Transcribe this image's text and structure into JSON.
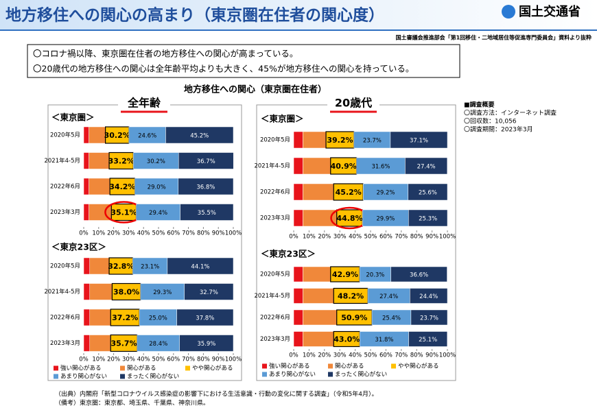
{
  "header": {
    "title": "地方移住への関心の高まり（東京圏在住者の関心度）",
    "logo": "国土交通省",
    "source": "国土審議会推進部会「第1回移住・二地域居住等促進専門委員会」資料より抜粋"
  },
  "bullets": [
    "〇コロナ禍以降、東京圏在住者の地方移住への関心が高まっている。",
    "〇20歳代の地方移住への関心は全年齢平均よりも大きく、45%が地方移住への関心を持っている。"
  ],
  "figure_title": "地方移住への関心（東京圏在住者）",
  "survey": [
    "■調査概要",
    "〇調査方法：インターネット調査",
    "〇回収数：10,056",
    "〇調査期間：2023年3月"
  ],
  "footnotes": [
    "（出典）内閣府「新型コロナウイルス感染症の影響下における生活意識・行動の変化に関する調査」（令和5年4月）。",
    "（備考）東京圏：東京都、埼玉県、千葉県、神奈川県。"
  ],
  "chart_data": [
    {
      "type": "bar",
      "orientation": "horizontal",
      "stacked": true,
      "subtitle": "全年齢",
      "title": "＜東京圏＞",
      "categories": [
        "2020年5月",
        "2021年4-5月",
        "2022年6月",
        "2023年3月"
      ],
      "series": [
        {
          "color": "#e8141b",
          "values": [
            3.5,
            3.5,
            3.5,
            3.5
          ]
        },
        {
          "color": "#f0883a",
          "values": [
            11,
            13.5,
            14,
            15
          ]
        },
        {
          "color": "#ffc000",
          "values": [
            15.7,
            16.2,
            16.7,
            16.6
          ]
        },
        {
          "color": "#5b9bd5",
          "values": [
            24.6,
            30.2,
            29.0,
            29.4
          ],
          "value_labels": [
            "24.6%",
            "30.2%",
            "29.0%",
            "29.4%"
          ]
        },
        {
          "color": "#1f3864",
          "values": [
            45.2,
            36.7,
            36.8,
            35.5
          ],
          "value_labels": [
            "45.2%",
            "36.7%",
            "36.8%",
            "35.5%"
          ]
        }
      ],
      "combined": {
        "values": [
          30.2,
          33.2,
          34.2,
          35.1
        ],
        "value_labels": [
          "30.2%",
          "33.2%",
          "34.2%",
          "35.1%"
        ]
      },
      "highlight": 3,
      "xlim": [
        0,
        100
      ],
      "xticks": [
        {
          "value": 0,
          "label": "0%"
        },
        {
          "value": 10,
          "label": "10%"
        },
        {
          "value": 20,
          "label": "20%"
        },
        {
          "value": 30,
          "label": "30%"
        },
        {
          "value": 40,
          "label": "40%"
        },
        {
          "value": 50,
          "label": "50%"
        },
        {
          "value": 60,
          "label": "60%"
        },
        {
          "value": 70,
          "label": "70%"
        },
        {
          "value": 80,
          "label": "80%"
        },
        {
          "value": 90,
          "label": "90%"
        },
        {
          "value": 100,
          "label": "100%"
        }
      ]
    },
    {
      "type": "bar",
      "orientation": "horizontal",
      "stacked": true,
      "title": "＜東京23区＞",
      "categories": [
        "2020年5月",
        "2021年4-5月",
        "2022年6月",
        "2023年3月"
      ],
      "series": [
        {
          "name": "強い関心がある",
          "color": "#e8141b",
          "values": [
            4,
            4,
            4,
            4
          ]
        },
        {
          "name": "関心がある",
          "color": "#f0883a",
          "values": [
            13,
            15,
            14,
            14
          ]
        },
        {
          "name": "やや関心がある",
          "color": "#ffc000",
          "values": [
            15.8,
            19.0,
            19.2,
            17.7
          ]
        },
        {
          "name": "あまり関心がない",
          "color": "#5b9bd5",
          "values": [
            23.1,
            29.3,
            25.0,
            28.4
          ],
          "value_labels": [
            "23.1%",
            "29.3%",
            "25.0%",
            "28.4%"
          ]
        },
        {
          "name": "まったく関心がない",
          "color": "#1f3864",
          "values": [
            44.1,
            32.7,
            37.8,
            35.9
          ],
          "value_labels": [
            "44.1%",
            "32.7%",
            "37.8%",
            "35.9%"
          ]
        }
      ],
      "combined": {
        "values": [
          32.8,
          38.0,
          37.2,
          35.7
        ],
        "value_labels": [
          "32.8%",
          "38.0%",
          "37.2%",
          "35.7%"
        ]
      },
      "xlim": [
        0,
        100
      ],
      "xticks": [
        {
          "value": 0,
          "label": "0%"
        },
        {
          "value": 10,
          "label": "10%"
        },
        {
          "value": 20,
          "label": "20%"
        },
        {
          "value": 30,
          "label": "30%"
        },
        {
          "value": 40,
          "label": "40%"
        },
        {
          "value": 50,
          "label": "50%"
        },
        {
          "value": 60,
          "label": "60%"
        },
        {
          "value": 70,
          "label": "70%"
        },
        {
          "value": 80,
          "label": "80%"
        },
        {
          "value": 90,
          "label": "90%"
        },
        {
          "value": 100,
          "label": "100%"
        }
      ]
    },
    {
      "type": "bar",
      "orientation": "horizontal",
      "stacked": true,
      "subtitle": "20歳代",
      "title": "＜東京圏＞",
      "categories": [
        "2020年5月",
        "2021年4-5月",
        "2022年6月",
        "2023年3月"
      ],
      "series": [
        {
          "color": "#e8141b",
          "values": [
            6,
            6,
            6,
            6
          ]
        },
        {
          "color": "#f0883a",
          "values": [
            15,
            18,
            20,
            22
          ]
        },
        {
          "color": "#ffc000",
          "values": [
            18.2,
            16.9,
            19.2,
            16.8
          ]
        },
        {
          "color": "#5b9bd5",
          "values": [
            23.7,
            31.6,
            29.2,
            29.9
          ],
          "value_labels": [
            "23.7%",
            "31.6%",
            "29.2%",
            "29.9%"
          ]
        },
        {
          "color": "#1f3864",
          "values": [
            37.1,
            27.4,
            25.6,
            25.3
          ],
          "value_labels": [
            "37.1%",
            "27.4%",
            "25.6%",
            "25.3%"
          ]
        }
      ],
      "combined": {
        "values": [
          39.2,
          40.9,
          45.2,
          44.8
        ],
        "value_labels": [
          "39.2%",
          "40.9%",
          "45.2%",
          "44.8%"
        ]
      },
      "highlight": 3,
      "xlim": [
        0,
        100
      ],
      "xticks": [
        {
          "value": 0,
          "label": "0%"
        },
        {
          "value": 10,
          "label": "10%"
        },
        {
          "value": 20,
          "label": "20%"
        },
        {
          "value": 30,
          "label": "30%"
        },
        {
          "value": 40,
          "label": "40%"
        },
        {
          "value": 50,
          "label": "50%"
        },
        {
          "value": 60,
          "label": "60%"
        },
        {
          "value": 70,
          "label": "70%"
        },
        {
          "value": 80,
          "label": "80%"
        },
        {
          "value": 90,
          "label": "90%"
        },
        {
          "value": 100,
          "label": "100%"
        }
      ]
    },
    {
      "type": "bar",
      "orientation": "horizontal",
      "stacked": true,
      "title": "＜東京23区＞",
      "categories": [
        "2020年5月",
        "2021年4-5月",
        "2022年6月",
        "2023年3月"
      ],
      "series": [
        {
          "name": "強い関心がある",
          "color": "#e8141b",
          "values": [
            6,
            6,
            6,
            6
          ]
        },
        {
          "name": "関心がある",
          "color": "#f0883a",
          "values": [
            18,
            20,
            22,
            20
          ]
        },
        {
          "name": "やや関心がある",
          "color": "#ffc000",
          "values": [
            18.9,
            22.2,
            22.9,
            17.0
          ]
        },
        {
          "name": "あまり関心がない",
          "color": "#5b9bd5",
          "values": [
            20.3,
            27.4,
            25.4,
            31.8
          ],
          "value_labels": [
            "20.3%",
            "27.4%",
            "25.4%",
            "31.8%"
          ]
        },
        {
          "name": "まったく関心がない",
          "color": "#1f3864",
          "values": [
            36.6,
            24.4,
            23.7,
            25.1
          ],
          "value_labels": [
            "36.6%",
            "24.4%",
            "23.7%",
            "25.1%"
          ]
        }
      ],
      "combined": {
        "values": [
          42.9,
          48.2,
          50.9,
          43.0
        ],
        "value_labels": [
          "42.9%",
          "48.2%",
          "50.9%",
          "43.0%"
        ]
      },
      "xlim": [
        0,
        100
      ],
      "xticks": [
        {
          "value": 0,
          "label": "0%"
        },
        {
          "value": 10,
          "label": "10%"
        },
        {
          "value": 20,
          "label": "20%"
        },
        {
          "value": 30,
          "label": "30%"
        },
        {
          "value": 40,
          "label": "40%"
        },
        {
          "value": 50,
          "label": "50%"
        },
        {
          "value": 60,
          "label": "60%"
        },
        {
          "value": 70,
          "label": "70%"
        },
        {
          "value": 80,
          "label": "80%"
        },
        {
          "value": 90,
          "label": "90%"
        },
        {
          "value": 100,
          "label": "100%"
        }
      ]
    }
  ]
}
